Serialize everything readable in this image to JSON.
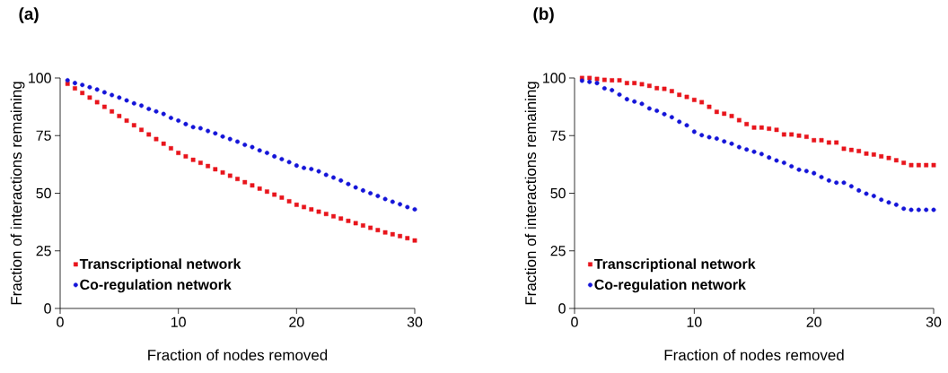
{
  "chart_data": [
    {
      "type": "scatter",
      "title": "(a)",
      "xlabel": "Fraction of nodes removed",
      "ylabel": "Fraction of interactions remaining",
      "xlim": [
        0,
        30
      ],
      "ylim": [
        0,
        100
      ],
      "xticks": [
        0,
        10,
        20,
        30
      ],
      "yticks": [
        0,
        25,
        50,
        75,
        100
      ],
      "legend": "bottom left",
      "grid": false,
      "x": [
        0.625,
        1.25,
        1.875,
        2.5,
        3.125,
        3.75,
        4.375,
        5,
        5.625,
        6.25,
        6.875,
        7.5,
        8.125,
        8.75,
        9.375,
        10,
        10.625,
        11.25,
        11.875,
        12.5,
        13.125,
        13.75,
        14.375,
        15,
        15.625,
        16.25,
        16.875,
        17.5,
        18.125,
        18.75,
        19.375,
        20,
        20.625,
        21.25,
        21.875,
        22.5,
        23.125,
        23.75,
        24.375,
        25,
        25.625,
        26.25,
        26.875,
        27.5,
        28.125,
        28.75,
        29.375,
        30
      ],
      "series": [
        {
          "name": "Transcriptional network",
          "color": "#e8141b",
          "marker": "square",
          "values": [
            97.5,
            95.5,
            93.5,
            91.5,
            89.5,
            87.5,
            85.5,
            83.5,
            81.5,
            79.5,
            77.5,
            75.5,
            73.5,
            71.5,
            69.5,
            67.5,
            66,
            64.5,
            63.2,
            61.8,
            60.4,
            59,
            57.6,
            56.2,
            54.8,
            53.4,
            52,
            50.7,
            49.4,
            48.1,
            46.5,
            45,
            44,
            43,
            42,
            41,
            40,
            39,
            38,
            37,
            36,
            35,
            34,
            33,
            32.2,
            31.4,
            30.5,
            29.5
          ]
        },
        {
          "name": "Co-regulation network",
          "color": "#1414d8",
          "marker": "circle",
          "values": [
            99,
            97.8,
            97,
            96,
            95,
            93.8,
            92.6,
            91.5,
            90.3,
            89,
            88,
            86.6,
            85.5,
            84.4,
            82.7,
            81.5,
            80,
            78.7,
            78.2,
            77,
            76,
            74.6,
            73.5,
            72.4,
            71,
            70,
            68.6,
            67.5,
            66,
            64.8,
            63.5,
            62,
            61,
            60.5,
            59.5,
            58,
            56.8,
            55.5,
            54,
            52.5,
            51.2,
            50,
            48.8,
            47.5,
            46.3,
            45.2,
            44,
            43
          ]
        }
      ]
    },
    {
      "type": "scatter",
      "title": "(b)",
      "xlabel": "Fraction of nodes removed",
      "ylabel": "Fraction of interactions remaining",
      "xlim": [
        0,
        30
      ],
      "ylim": [
        0,
        100
      ],
      "xticks": [
        0,
        10,
        20,
        30
      ],
      "yticks": [
        0,
        25,
        50,
        75,
        100
      ],
      "legend": "bottom left",
      "grid": false,
      "x": [
        0.625,
        1.25,
        1.875,
        2.5,
        3.125,
        3.75,
        4.375,
        5,
        5.625,
        6.25,
        6.875,
        7.5,
        8.125,
        8.75,
        9.375,
        10,
        10.625,
        11.25,
        11.875,
        12.5,
        13.125,
        13.75,
        14.375,
        15,
        15.625,
        16.25,
        16.875,
        17.5,
        18.125,
        18.75,
        19.375,
        20,
        20.625,
        21.25,
        21.875,
        22.5,
        23.125,
        23.75,
        24.375,
        25,
        25.625,
        26.25,
        26.875,
        27.5,
        28.125,
        28.75,
        29.375,
        30
      ],
      "series": [
        {
          "name": "Transcriptional network",
          "color": "#e8141b",
          "marker": "square",
          "values": [
            100,
            100,
            99.6,
            99.2,
            99,
            99,
            97.8,
            97.8,
            97.3,
            96.6,
            95.6,
            95.3,
            94.3,
            92.7,
            91.8,
            90.5,
            89.5,
            87.5,
            85.3,
            84.5,
            83.5,
            81.7,
            80,
            78.5,
            78.5,
            78,
            77.5,
            75.5,
            75.5,
            75,
            74.5,
            73,
            73,
            72,
            72,
            69.3,
            68.8,
            68.3,
            67.2,
            66.8,
            66,
            65.3,
            64.3,
            63.2,
            62.2,
            62.2,
            62.2,
            62.2
          ]
        },
        {
          "name": "Co-regulation network",
          "color": "#1414d8",
          "marker": "circle",
          "values": [
            98.8,
            98.3,
            97.8,
            95.5,
            94.7,
            92.8,
            90.8,
            89.8,
            88.8,
            86.8,
            85.8,
            84.3,
            83,
            81,
            79.5,
            76.7,
            75.2,
            74.3,
            73.7,
            72.5,
            71.5,
            70,
            69,
            68,
            67,
            65.5,
            64.2,
            63.2,
            61.7,
            60.2,
            59.6,
            58.7,
            57,
            55.5,
            54.6,
            54.6,
            53,
            51.2,
            49.8,
            48.8,
            47.2,
            46,
            45,
            43.3,
            42.8,
            42.8,
            42.8,
            42.8
          ]
        }
      ]
    }
  ]
}
